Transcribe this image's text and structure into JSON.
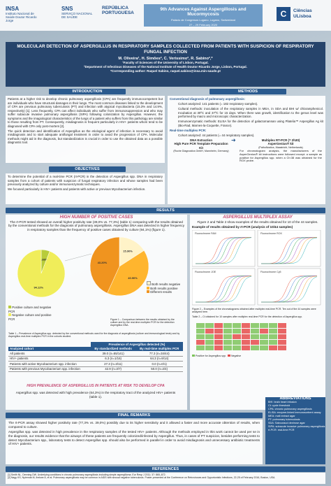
{
  "header": {
    "logo1_big": "INSA",
    "logo1_small": "Instituto Nacional de Saúde Doutor Ricardo Jorge",
    "logo2_big": "SNS",
    "logo2_small": "SERVIÇO NACIONAL DE SAÚDE",
    "logo3_big": "REPÚBLICA PORTUGUESA",
    "conf_title": "9th Advances Against Aspergillosis and Mucormycosis",
    "conf_sub": "Palácio de Congresos Lugano, Lugano, Switzerland",
    "conf_date": "27 – 29 February 2020",
    "ciencias_box": "C",
    "ciencias_line1": "Ciências",
    "ciencias_line2": "ULisboa"
  },
  "title": {
    "text": "MOLECULAR DETECTION OF ASPERGILLUS IN RESPIRATORY SAMPLES COLLECTED FROM PATIENTS WITH SUSPICION OF RESPIRATORY FUNGAL INFECTION",
    "authors": "M. Oliveira¹, H. Simões², C. Verissimo², R. Sabino²,*",
    "aff1": "¹Faculty of Sciences of the University of Lisbon, Portugal.",
    "aff2": "²Department of Infectious Diseases of the National Institute of Health Doutor Ricardo Jorge, Lisbon, Portugal.",
    "aff3": "*Corresponding author: Raquel Sabino, raquel.sabino@insa.min-saude.pt"
  },
  "sections": {
    "intro": "INTRODUCTION",
    "methods": "METHODS",
    "objectives": "OBJECTIVES",
    "results": "RESULTS",
    "final": "FINAL REMARKS",
    "refs": "REFERENCES",
    "abbr": "ABBREVIATIONS"
  },
  "intro_text": [
    "Patients at a higher risk to develop chronic pulmonary aspergillosis (CPA) are frequently immunocompetent but are individuals who have structural damages in their lungs. The most common diseases linked to the development of CPA are previous pulmonary tuberculosis (PT) and infection with atypical mycobacteria (15.3% and 14.9%, respectively) [1]. Less frequently, CPA can affect individuals who suffer from immunosuppression and who may suffer subacute invasive pulmonary aspergillosis (SIPA) following colonization by Aspergillus. However, the symptoms and the imagiological characteristics of the lungs of a patient who suffers from this pathology are similar to those resulting from PT. Consequently, misdiagnosis is frequent particularly in HIV+ patients whom tend to be diagnosed with CPA only post-mortem [2].",
    "The quick detection and identification of Aspergillus as the etiological agent of infection is necessary to avoid misdiagnosis and to start adequate antifungal treatment in order to avoid the progression of CPA. Molecular methods might aid in the diagnosis, but standardization is crucial in order to use the obtained data as a possible diagnostic tool."
  ],
  "objectives_text": [
    "To determine the potential of a real-time PCR (rt-PCR) in the detection of Aspergillus spp. DNA in respiratory samples from a cohort of patients with suspicion of fungal respiratory infection and whose samples had been previously analyzed by culture and/or immunoenzymatic techniques.",
    "We focused particularly in HIV+ patients and patients with active or previous Mycobacterium infection."
  ],
  "methods": {
    "diag_head": "Conventional diagnosis of pulmonary aspergillosis:",
    "cohort1": "Cohort analyzed: 141 patients (= 182 respiratory samples).",
    "cultural": "Cultural methods: inoculation of the respiratory samples in MEA, in SDA and BHI w/ chloramphenicol. Incubation at 30ºC and 37ºC for 15 days. When there was growth, identification to the genus level was performed by macro and microscopic characterization.",
    "immuno": "Immunoenzymatic methods: ELISA for the detection of galactomannan using Platelia™ Aspergillus Ag kit (Bio-Rad, Marnes-la-Coquette, France).",
    "rt_head": "Real-time multiplex PCR:",
    "cohort2": "Cohort analyzed: 44 patients (= 44 respiratory samples).",
    "dna": "DNA Extraction",
    "dna_sub": "High Pure PCR Template Preparation Kit",
    "dna_sub2": "(Roche Diagnostics GmbH, Mannheim, Germany)",
    "mpcr": "Multiplex RT-PCR (= 2h30)",
    "mpcr_sub": "AsperGenius® kit",
    "mpcr_sub2": "(PathoNostics, Maastricht, Netherlands)",
    "mpcr_note": "For chromatogram analysis, the manufacturers of the AsperGenius® kit instructions were followed except: a sample as positive for Aspergillus spp. when a Ct<38 was obtained for the ROX probe."
  },
  "results_left": {
    "head": "HIGH NUMBER OF POSITIVE CASES",
    "text": "The rt-PCR tested showed an overall higher positivity rate (39,0% vs. 77,3%) (table 1) comparing with the results obtained by the conventional methods for the diagnosis of pulmonary aspergillosis. Aspergillus DNA was detected in higher frequency in respiratory samples than the frequency of positive cases obtained by culture (94,1%) (figure 1).",
    "fig_caption": "Figure 1 – Comparison between the results obtained by the culture and by the real-time multiplex PCR for the detection Aspergillus DNA.",
    "legend": [
      "Positive culture and negative PCR",
      "Negative culture and positive PCR",
      "Both results negative",
      "Both results positive",
      "Different results"
    ]
  },
  "pie_left": {
    "slices": [
      {
        "label": "Positive culture and negative PCR",
        "value": 5.88,
        "color": "#b8cc3a",
        "text": "5.88%"
      },
      {
        "label": "Negative culture and positive PCR",
        "value": 94.12,
        "color": "#f0ed5a",
        "text": "94.12%"
      }
    ]
  },
  "pie_right": {
    "slices": [
      {
        "label": "Both results negative",
        "value": 15.9,
        "color": "#fff3c8",
        "text": "15.90%"
      },
      {
        "label": "Both results positive",
        "value": 40.9,
        "color": "#ffb52e",
        "text": "40.90%"
      },
      {
        "label": "Different results",
        "value": 43.2,
        "color": "#f0941f",
        "text": "43.20%"
      }
    ]
  },
  "table1": {
    "caption": "Table 1 – Prevalence of Aspergillus spp. detected by the conventional methods used for the diagnosis of aspergillosis (culture and immunological tests) and by Aspergillus real-time multiplex PCR in the cohorts studied.",
    "super_header": "Prevalence of Aspergillus detected (%)",
    "headers": [
      "Analyzed cohort",
      "By standardized methods",
      "By real-time multiplex PCR"
    ],
    "rows": [
      [
        "All patients",
        "39.0 (n=55/141)",
        "77.3 (n=34/44)"
      ],
      [
        "HIV+ patients",
        "6.3 (n=1/16)",
        "64.3 (n=9/14)"
      ],
      [
        "Patients with active Mycobacterium spp. infection",
        "27.3 (n=3/11)",
        "0.0 (n=0/1)"
      ],
      [
        "Patients with previous Mycobacterium spp. infection",
        "42.9 (n=3/7)",
        "50.0 (n=2/4)"
      ]
    ]
  },
  "hiv": {
    "head": "HIGH PREVALENCE OF ASPERGILLUS IN PATIENTS AT RISK TO DEVELOP CPA",
    "text": "Aspergillus spp. was detected with high prevalence (64,3%) in the respiratory tract of the analyzed HIV+ patients (table 1)."
  },
  "results_right": {
    "head": "ASPERGILLUS MULTIPLEX ASSAY",
    "text": "Figure 2 and Table 2 show examples of the results obtained for 10 of the 44 samples.",
    "example": "Example of results obtained by rt-PCR (analysis of 10/44 samples)",
    "panels": [
      "Fluorochrome FAM",
      "Fluorochrome ROX",
      "Fluorochrome JOE",
      "Fluorochrome Cy5"
    ],
    "fig_caption": "Figure 2 – Examples of the chromatograms obtained after multiplex real-time PCR. Ten out of the 44 samples were analyzed here.",
    "table2_caption": "Table 2 – Ct obtained for 10 samples after multiplex real-time PCR for the detection of Aspergillus spp.",
    "table2_legend": [
      "Positive for Aspergillus spp.",
      "Negative"
    ]
  },
  "final_text": [
    "The rt-PCR assay showed higher positivity rate (77,3% vs. 39,0%) possibly due to its higher sensitivity and it allowed a faster and more accurate obtention of results, when compared to culture.",
    "Aspergillus spp. was detected in high prevalence in the respiratory samples of the tested HIV+ patients. Although the methods employed in this work cannot be used per se in the diagnosis, our results evidence that the airways of these patients are frequently colonized/infected by Aspergillus. Thus, in cases of PT suspicion, besides performing tests to detect Mycobacterium spp., laboratory tests to detect Aspergillus spp. should also be performed in parallel in order to avoid misdiagnosis and unnecessary antibiotic treatments of HIV+ patients."
  ],
  "abbreviations": [
    "BHI: brain heart infusion",
    "Ct: cycle threshold",
    "CPA: chronic pulmonary aspergillosis",
    "ELISA: enzyme-linked immunosorbent assay",
    "MEA: malt extract agar",
    "PT: pulmonary tuberculosis",
    "SDA: Sabouraud dextrose agar",
    "SIPA: subacute invasive pulmonary aspergillosis",
    "rt-PCR: real-time PCR"
  ],
  "references": [
    "[1] Smith NL, Denning DW. Underlying conditions in chronic pulmonary aspergillosis including simple aspergilloma. Eur Resp J 2011; 37: 865–872.",
    "[2] Nagy KS, Nyirenda M, Ihekwe A, et al. Pulmonary aspergillosis may be common in AIDS with sinusal negative tuberculosis. Poster presented at the Conference on Retroviruses and Opportunistic Infections, 22-25 of February 2016, Boston, USA."
  ]
}
